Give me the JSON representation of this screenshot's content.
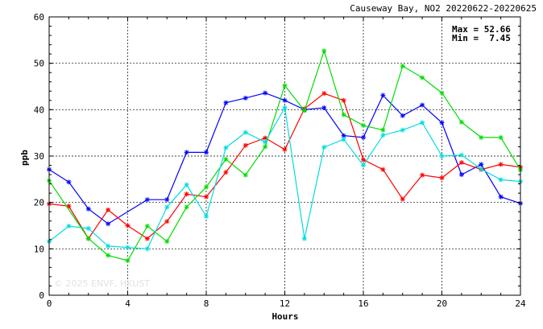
{
  "chart_data": {
    "type": "line",
    "title": "Causeway Bay, NO2 20220622-20220625",
    "xlabel": "Hours",
    "ylabel": "ppb",
    "xlim": [
      0,
      24
    ],
    "ylim": [
      0,
      60
    ],
    "x_ticks": [
      "0",
      "4",
      "8",
      "12",
      "16",
      "20",
      "24"
    ],
    "y_ticks": [
      "0",
      "10",
      "20",
      "30",
      "40",
      "50",
      "60"
    ],
    "grid": true,
    "stats": {
      "max_label": "Max = 52.66",
      "min_label": "Min =  7.45"
    },
    "watermark": "© 2025  ENVF, HKUST",
    "x": [
      0,
      1,
      2,
      3,
      4,
      5,
      6,
      7,
      8,
      9,
      10,
      11,
      12,
      13,
      14,
      15,
      16,
      17,
      18,
      19,
      20,
      21,
      22,
      23,
      24
    ],
    "series": [
      {
        "color": "#0000ff",
        "values": [
          27.1,
          24.4,
          18.6,
          15.4,
          null,
          20.6,
          20.6,
          30.8,
          30.8,
          41.5,
          42.5,
          43.6,
          42.0,
          40.0,
          40.4,
          34.4,
          34.0,
          43.1,
          38.7,
          41.0,
          37.2,
          26.0,
          28.2,
          21.2,
          19.8
        ]
      },
      {
        "color": "#ff0000",
        "values": [
          19.7,
          19.2,
          12.2,
          18.4,
          15.0,
          12.2,
          15.9,
          21.8,
          21.2,
          26.5,
          32.3,
          33.9,
          31.4,
          40.2,
          43.5,
          42.0,
          29.2,
          27.1,
          20.7,
          25.9,
          25.3,
          28.6,
          27.1,
          28.2,
          27.6
        ]
      },
      {
        "color": "#00dd00",
        "values": [
          24.7,
          null,
          12.2,
          8.6,
          7.45,
          14.9,
          11.6,
          19.0,
          23.3,
          29.3,
          25.9,
          32.0,
          45.2,
          39.8,
          52.66,
          38.9,
          36.6,
          35.6,
          49.4,
          46.9,
          43.6,
          37.3,
          34.0,
          34.0,
          27.0
        ]
      },
      {
        "color": "#00dddd",
        "values": [
          11.6,
          14.9,
          14.4,
          10.6,
          10.3,
          10.0,
          19.0,
          23.8,
          17.0,
          31.8,
          35.1,
          33.0,
          40.4,
          12.2,
          31.9,
          33.6,
          28.0,
          34.5,
          35.6,
          37.2,
          30.0,
          30.2,
          27.2,
          24.9,
          24.5
        ]
      }
    ]
  }
}
